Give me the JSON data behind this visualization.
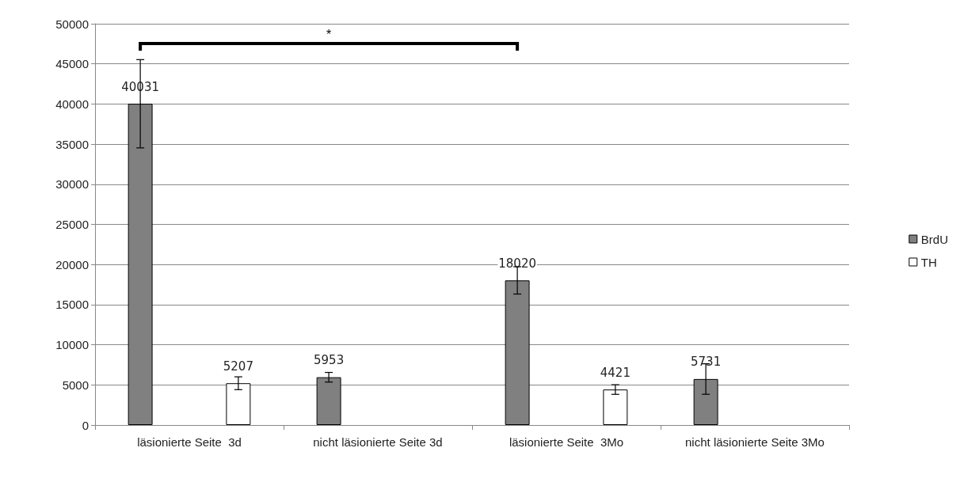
{
  "chart_data": {
    "type": "bar",
    "categories": [
      "läsionierte Seite  3d",
      "nicht läsionierte Seite 3d",
      "läsionierte Seite  3Mo",
      "nicht läsionierte Seite 3Mo"
    ],
    "series": [
      {
        "name": "BrdU",
        "color": "#808080",
        "values": [
          40031,
          5953,
          18020,
          5731
        ],
        "errors": [
          5500,
          600,
          1700,
          1900
        ]
      },
      {
        "name": "TH",
        "color": "#ffffff",
        "values": [
          5207,
          null,
          4421,
          null
        ],
        "errors": [
          800,
          null,
          600,
          null
        ]
      }
    ],
    "ylim": [
      0,
      50000
    ],
    "yticks": [
      0,
      5000,
      10000,
      15000,
      20000,
      25000,
      30000,
      35000,
      40000,
      45000,
      50000
    ],
    "grid": "y",
    "legend": "right",
    "data_labels": true,
    "annotations": [
      "*"
    ]
  }
}
